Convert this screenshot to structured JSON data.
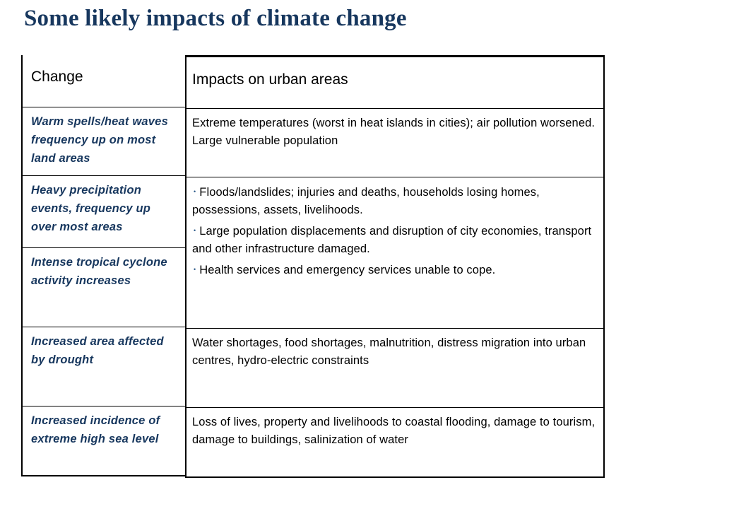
{
  "title": "Some likely impacts of climate change",
  "table": {
    "headers": {
      "change": "Change",
      "impacts": "Impacts on urban areas"
    },
    "changes": [
      "Warm spells/heat waves frequency up on most land areas",
      "Heavy precipitation events, frequency up over most areas",
      "Intense tropical cyclone activity increases",
      "Increased area affected by drought",
      "Increased incidence of extreme high sea level"
    ],
    "impacts": {
      "heat": "Extreme temperatures (worst in heat islands in cities); air pollution worsened. Large vulnerable population",
      "floods_bullets": [
        "Floods/landslides; injuries and deaths, households losing homes, possessions, assets, livelihoods.",
        "Large population displacements and disruption of city economies, transport and other infrastructure damaged.",
        "Health services and emergency services unable to cope."
      ],
      "drought": "Water shortages, food shortages, malnutrition, distress migration into urban centres, hydro-electric constraints",
      "sea_level": "Loss of lives, property and livelihoods to coastal flooding, damage to tourism, damage to buildings, salinization of water"
    },
    "bullet_glyph": "•"
  }
}
